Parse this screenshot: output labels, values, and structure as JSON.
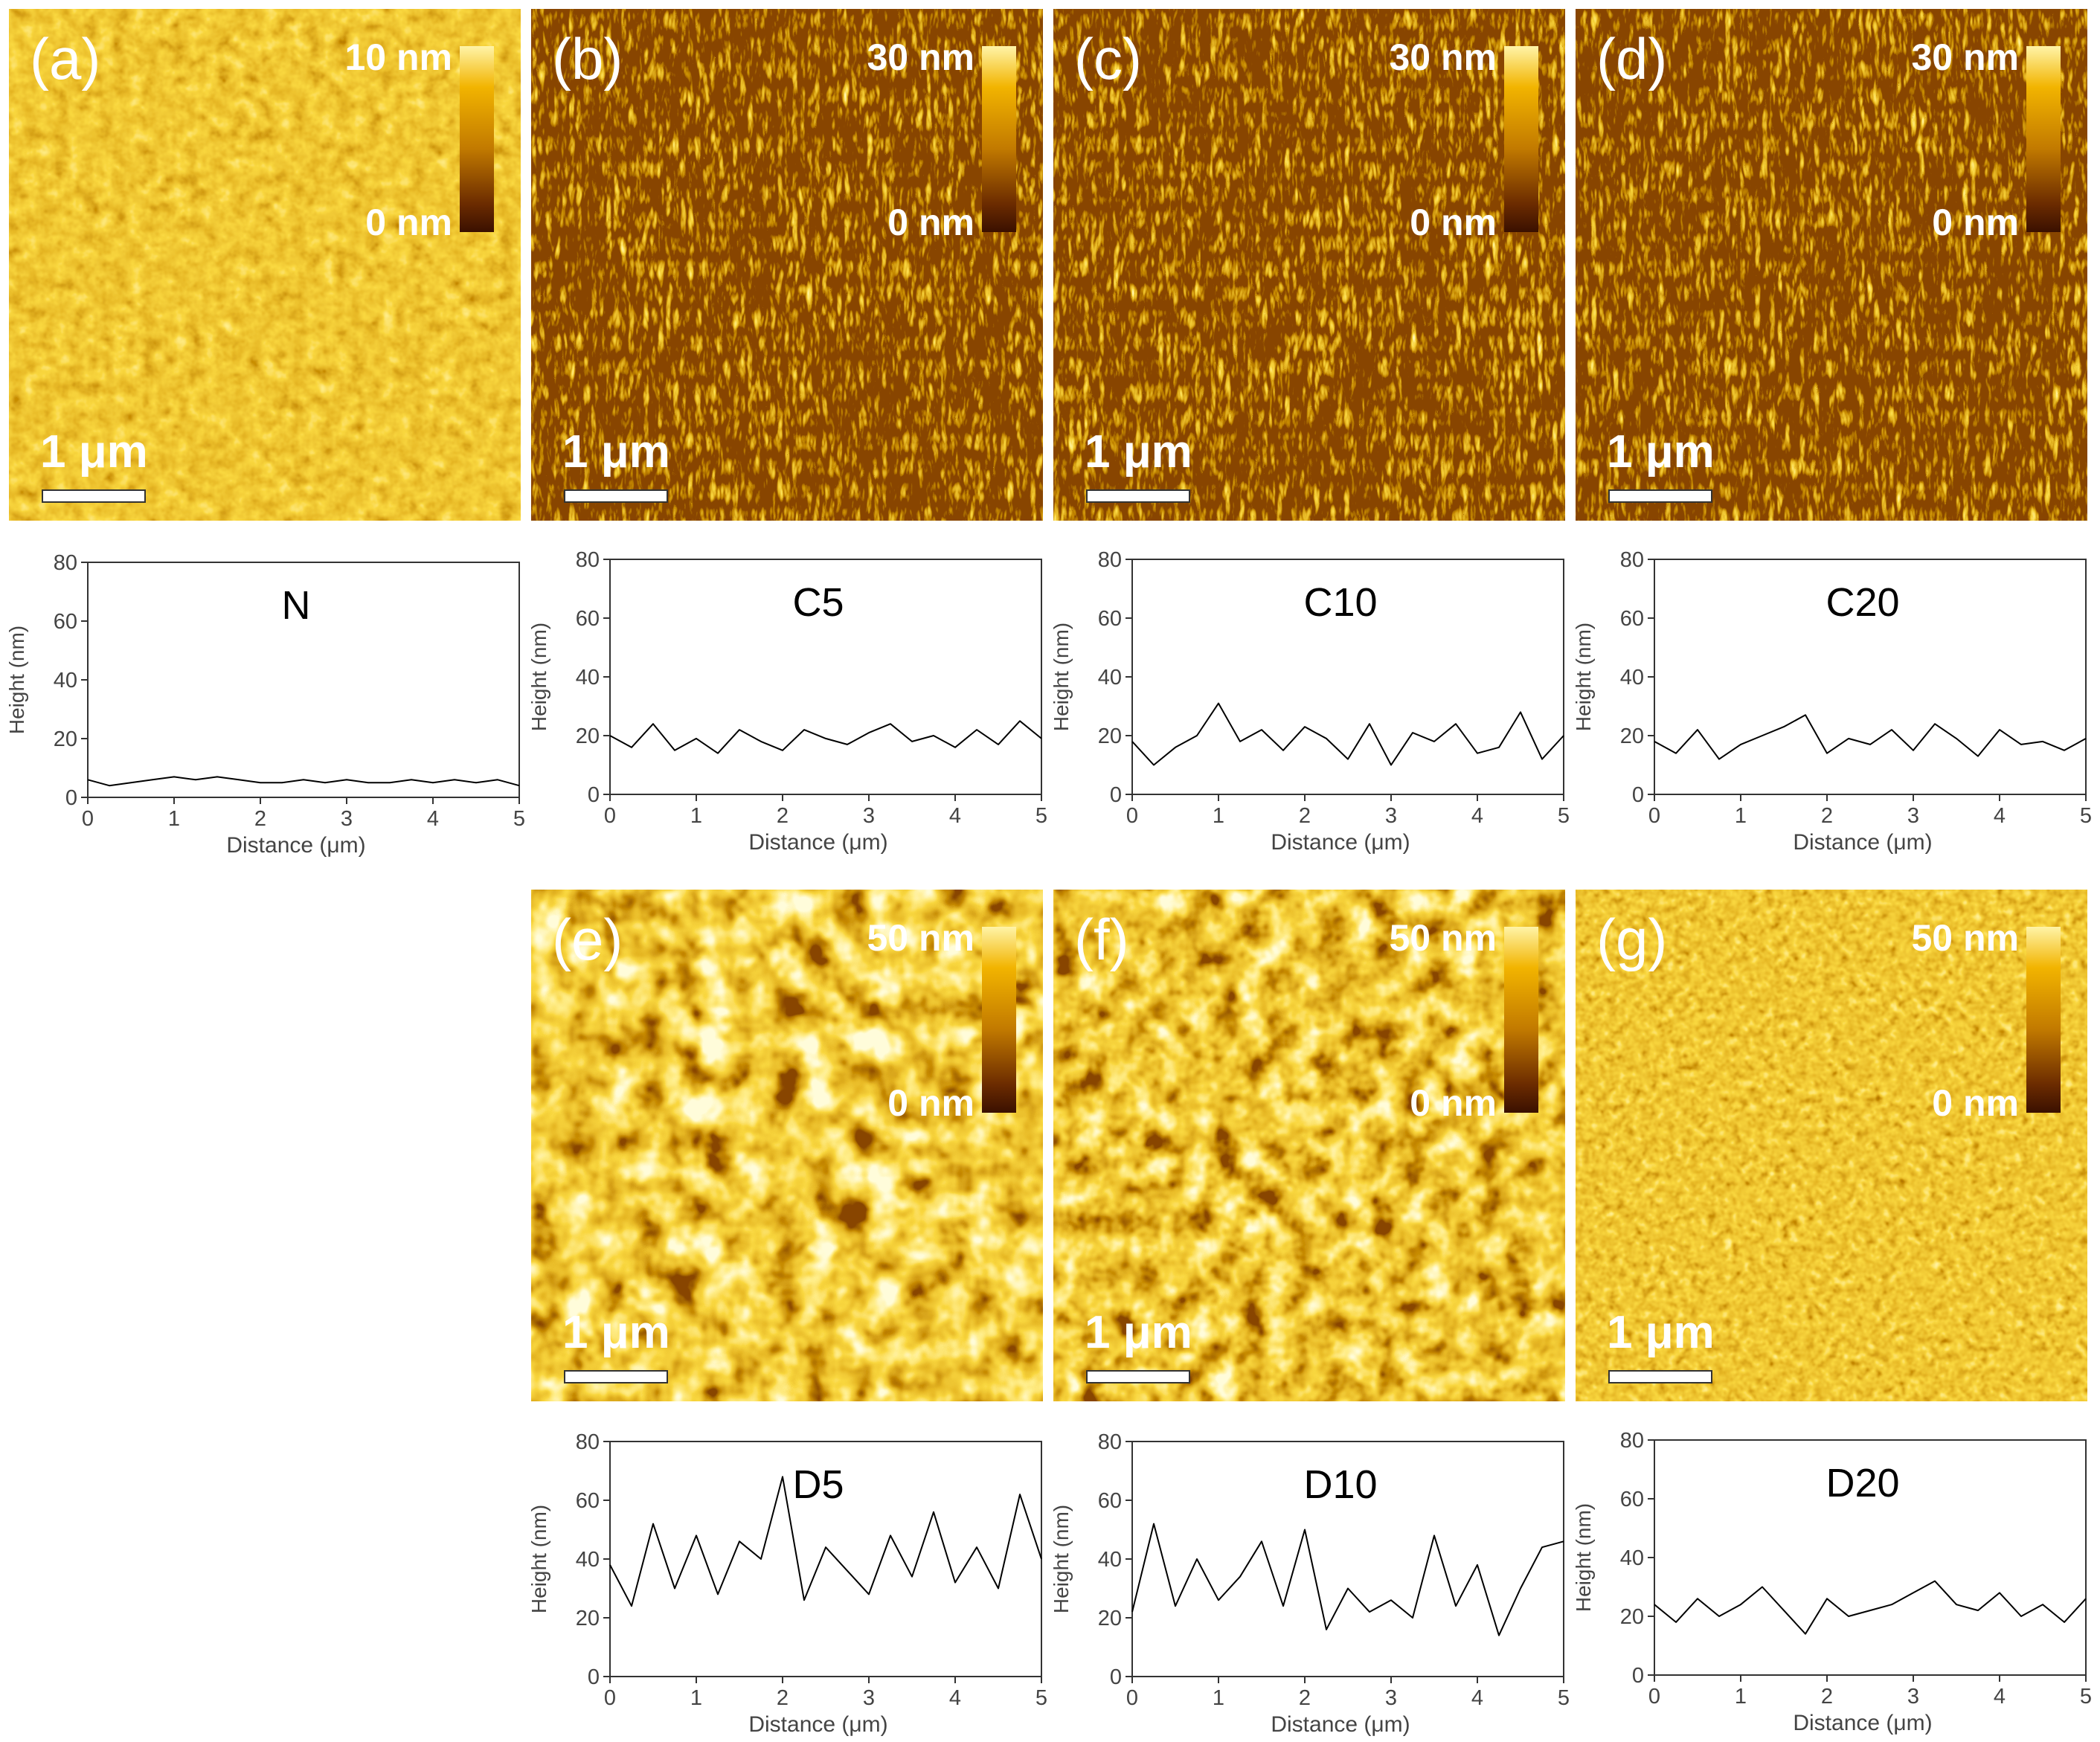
{
  "afm_panels": [
    {
      "label": "(a)",
      "cmax": "10 nm",
      "cmin": "0 nm",
      "scale": "1 μm"
    },
    {
      "label": "(b)",
      "cmax": "30 nm",
      "cmin": "0 nm",
      "scale": "1 μm"
    },
    {
      "label": "(c)",
      "cmax": "30 nm",
      "cmin": "0 nm",
      "scale": "1 μm"
    },
    {
      "label": "(d)",
      "cmax": "30 nm",
      "cmin": "0 nm",
      "scale": "1 μm"
    },
    {
      "label": "(e)",
      "cmax": "50 nm",
      "cmin": "0 nm",
      "scale": "1 μm"
    },
    {
      "label": "(f)",
      "cmax": "50 nm",
      "cmin": "0 nm",
      "scale": "1 μm"
    },
    {
      "label": "(g)",
      "cmax": "50 nm",
      "cmin": "0 nm",
      "scale": "1 μm"
    }
  ],
  "colors": {
    "line": "#000000",
    "axis": "#333333",
    "tick_text": "#444444"
  },
  "chart_data": [
    {
      "type": "line",
      "title": "N",
      "xlabel": "Distance (μm)",
      "ylabel": "Height (nm)",
      "xlim": [
        0,
        5
      ],
      "ylim": [
        0,
        80
      ],
      "xticks": [
        0,
        1,
        2,
        3,
        4,
        5
      ],
      "yticks": [
        0,
        20,
        40,
        60,
        80
      ],
      "series": [
        {
          "name": "N",
          "x": [
            0,
            0.25,
            0.5,
            0.75,
            1,
            1.25,
            1.5,
            1.75,
            2,
            2.25,
            2.5,
            2.75,
            3,
            3.25,
            3.5,
            3.75,
            4,
            4.25,
            4.5,
            4.75,
            5
          ],
          "y": [
            6,
            4,
            5,
            6,
            7,
            6,
            7,
            6,
            5,
            5,
            6,
            5,
            6,
            5,
            5,
            6,
            5,
            6,
            5,
            6,
            4
          ]
        }
      ]
    },
    {
      "type": "line",
      "title": "C5",
      "xlabel": "Distance (μm)",
      "ylabel": "Height (nm)",
      "xlim": [
        0,
        5
      ],
      "ylim": [
        0,
        80
      ],
      "xticks": [
        0,
        1,
        2,
        3,
        4,
        5
      ],
      "yticks": [
        0,
        20,
        40,
        60,
        80
      ],
      "series": [
        {
          "name": "C5",
          "x": [
            0,
            0.25,
            0.5,
            0.75,
            1,
            1.25,
            1.5,
            1.75,
            2,
            2.25,
            2.5,
            2.75,
            3,
            3.25,
            3.5,
            3.75,
            4,
            4.25,
            4.5,
            4.75,
            5
          ],
          "y": [
            20,
            16,
            24,
            15,
            19,
            14,
            22,
            18,
            15,
            22,
            19,
            17,
            21,
            24,
            18,
            20,
            16,
            22,
            17,
            25,
            19
          ]
        }
      ]
    },
    {
      "type": "line",
      "title": "C10",
      "xlabel": "Distance (μm)",
      "ylabel": "Height (nm)",
      "xlim": [
        0,
        5
      ],
      "ylim": [
        0,
        80
      ],
      "xticks": [
        0,
        1,
        2,
        3,
        4,
        5
      ],
      "yticks": [
        0,
        20,
        40,
        60,
        80
      ],
      "series": [
        {
          "name": "C10",
          "x": [
            0,
            0.25,
            0.5,
            0.75,
            1,
            1.25,
            1.5,
            1.75,
            2,
            2.25,
            2.5,
            2.75,
            3,
            3.25,
            3.5,
            3.75,
            4,
            4.25,
            4.5,
            4.75,
            5
          ],
          "y": [
            18,
            10,
            16,
            20,
            31,
            18,
            22,
            15,
            23,
            19,
            12,
            24,
            10,
            21,
            18,
            24,
            14,
            16,
            28,
            12,
            20
          ]
        }
      ]
    },
    {
      "type": "line",
      "title": "C20",
      "xlabel": "Distance (μm)",
      "ylabel": "Height (nm)",
      "xlim": [
        0,
        5
      ],
      "ylim": [
        0,
        80
      ],
      "xticks": [
        0,
        1,
        2,
        3,
        4,
        5
      ],
      "yticks": [
        0,
        20,
        40,
        60,
        80
      ],
      "series": [
        {
          "name": "C20",
          "x": [
            0,
            0.25,
            0.5,
            0.75,
            1,
            1.25,
            1.5,
            1.75,
            2,
            2.25,
            2.5,
            2.75,
            3,
            3.25,
            3.5,
            3.75,
            4,
            4.25,
            4.5,
            4.75,
            5
          ],
          "y": [
            18,
            14,
            22,
            12,
            17,
            20,
            23,
            27,
            14,
            19,
            17,
            22,
            15,
            24,
            19,
            13,
            22,
            17,
            18,
            15,
            19
          ]
        }
      ]
    },
    {
      "type": "line",
      "title": "D5",
      "xlabel": "Distance (μm)",
      "ylabel": "Height (nm)",
      "xlim": [
        0,
        5
      ],
      "ylim": [
        0,
        80
      ],
      "xticks": [
        0,
        1,
        2,
        3,
        4,
        5
      ],
      "yticks": [
        0,
        20,
        40,
        60,
        80
      ],
      "series": [
        {
          "name": "D5",
          "x": [
            0,
            0.25,
            0.5,
            0.75,
            1,
            1.25,
            1.5,
            1.75,
            2,
            2.25,
            2.5,
            2.75,
            3,
            3.25,
            3.5,
            3.75,
            4,
            4.25,
            4.5,
            4.75,
            5
          ],
          "y": [
            38,
            24,
            52,
            30,
            48,
            28,
            46,
            40,
            68,
            26,
            44,
            36,
            28,
            48,
            34,
            56,
            32,
            44,
            30,
            62,
            40
          ]
        }
      ]
    },
    {
      "type": "line",
      "title": "D10",
      "xlabel": "Distance (μm)",
      "ylabel": "Height (nm)",
      "xlim": [
        0,
        5
      ],
      "ylim": [
        0,
        80
      ],
      "xticks": [
        0,
        1,
        2,
        3,
        4,
        5
      ],
      "yticks": [
        0,
        20,
        40,
        60,
        80
      ],
      "series": [
        {
          "name": "D10",
          "x": [
            0,
            0.25,
            0.5,
            0.75,
            1,
            1.25,
            1.5,
            1.75,
            2,
            2.25,
            2.5,
            2.75,
            3,
            3.25,
            3.5,
            3.75,
            4,
            4.25,
            4.5,
            4.75,
            5
          ],
          "y": [
            22,
            52,
            24,
            40,
            26,
            34,
            46,
            24,
            50,
            16,
            30,
            22,
            26,
            20,
            48,
            24,
            38,
            14,
            30,
            44,
            46
          ]
        }
      ]
    },
    {
      "type": "line",
      "title": "D20",
      "xlabel": "Distance (μm)",
      "ylabel": "Height (nm)",
      "xlim": [
        0,
        5
      ],
      "ylim": [
        0,
        80
      ],
      "xticks": [
        0,
        1,
        2,
        3,
        4,
        5
      ],
      "yticks": [
        0,
        20,
        40,
        60,
        80
      ],
      "series": [
        {
          "name": "D20",
          "x": [
            0,
            0.25,
            0.5,
            0.75,
            1,
            1.25,
            1.5,
            1.75,
            2,
            2.25,
            2.5,
            2.75,
            3,
            3.25,
            3.5,
            3.75,
            4,
            4.25,
            4.5,
            4.75,
            5
          ],
          "y": [
            24,
            18,
            26,
            20,
            24,
            30,
            22,
            14,
            26,
            20,
            22,
            24,
            28,
            32,
            24,
            22,
            28,
            20,
            24,
            18,
            26
          ]
        }
      ]
    }
  ]
}
